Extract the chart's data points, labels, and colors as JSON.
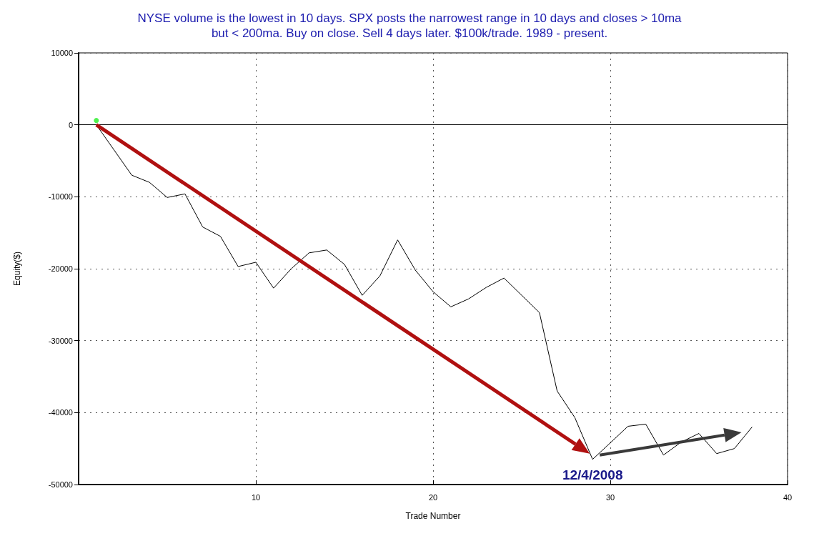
{
  "chart_data": {
    "type": "line",
    "title": "NYSE volume is the lowest in 10 days. SPX posts the narrowest range in 10 days and closes > 10ma\nbut < 200ma. Buy on close. Sell 4 days later. $100k/trade. 1989 - present.",
    "xlabel": "Trade Number",
    "ylabel": "Equity($)",
    "series": [
      {
        "color": "#000000",
        "x": [
          1,
          2,
          3,
          4,
          5,
          6,
          7,
          8,
          9,
          10,
          11,
          12,
          13,
          14,
          15,
          16,
          17,
          18,
          19,
          20,
          21,
          22,
          23,
          24,
          25,
          26,
          27,
          28,
          29,
          30,
          31,
          32,
          33,
          34,
          35,
          36,
          37,
          38
        ],
        "values": [
          0,
          -3500,
          -7000,
          -8000,
          -10100,
          -9600,
          -14200,
          -15500,
          -19700,
          -19100,
          -22700,
          -20000,
          -17800,
          -17400,
          -19400,
          -23700,
          -21000,
          -16000,
          -20200,
          -23200,
          -25300,
          -24200,
          -22600,
          -21300,
          -23700,
          -26100,
          -37000,
          -40700,
          -46500,
          -44200,
          -41900,
          -41600,
          -45900,
          -44100,
          -42900,
          -45700,
          -45000,
          -42000
        ]
      },
      {
        "type": "scatter",
        "color": "#22ee22",
        "x": [
          1
        ],
        "values": [
          600
        ]
      }
    ],
    "xlim": [
      0,
      40
    ],
    "xticks": [
      10,
      20,
      30,
      40
    ],
    "ylim": [
      -50000,
      10000
    ],
    "yticks": [
      -50000,
      -40000,
      -30000,
      -20000,
      -10000,
      0,
      10000
    ],
    "ref_lines": [
      {
        "axis": "y",
        "value": 0,
        "color": "#000000",
        "line_style": "solid"
      }
    ],
    "annotations": [
      {
        "text": "12/4/2008",
        "x": 29,
        "y": -46500
      }
    ],
    "grid": true,
    "marker": "none",
    "line_style": "solid"
  }
}
